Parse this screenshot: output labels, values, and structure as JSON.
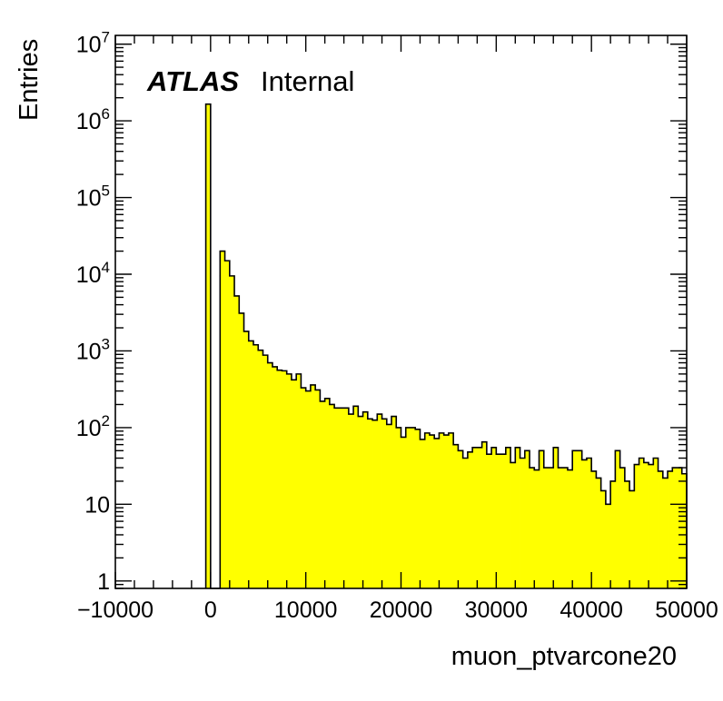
{
  "chart_data": {
    "type": "bar",
    "subtype": "histogram",
    "xlabel": "muon_ptvarcone20",
    "ylabel": "Entries",
    "annotation": {
      "brand": "ATLAS",
      "label": "Internal"
    },
    "xlim": [
      -10000,
      50000
    ],
    "ylim": [
      0.8,
      13000000
    ],
    "yscale": "log",
    "grid": false,
    "fill_color": "#ffff00",
    "line_color": "#000000",
    "x_ticks": [
      {
        "value": -10000,
        "label": "−10000"
      },
      {
        "value": 0,
        "label": "0"
      },
      {
        "value": 10000,
        "label": "10000"
      },
      {
        "value": 20000,
        "label": "20000"
      },
      {
        "value": 30000,
        "label": "30000"
      },
      {
        "value": 40000,
        "label": "40000"
      },
      {
        "value": 50000,
        "label": "50000"
      }
    ],
    "y_ticks": [
      {
        "value": 1,
        "base": "1",
        "exp": ""
      },
      {
        "value": 10,
        "base": "10",
        "exp": ""
      },
      {
        "value": 100,
        "base": "10",
        "exp": "2"
      },
      {
        "value": 1000,
        "base": "10",
        "exp": "3"
      },
      {
        "value": 10000,
        "base": "10",
        "exp": "4"
      },
      {
        "value": 100000,
        "base": "10",
        "exp": "5"
      },
      {
        "value": 1000000,
        "base": "10",
        "exp": "6"
      },
      {
        "value": 10000000,
        "base": "10",
        "exp": "7"
      }
    ],
    "bin_width": 500,
    "bins_start": -500,
    "values": [
      1650000,
      0,
      0,
      20000,
      15000,
      9500,
      5200,
      3100,
      1800,
      1350,
      1200,
      1020,
      880,
      700,
      620,
      560,
      550,
      500,
      420,
      500,
      330,
      300,
      360,
      310,
      220,
      240,
      200,
      180,
      180,
      180,
      150,
      190,
      140,
      160,
      130,
      125,
      150,
      130,
      110,
      140,
      100,
      75,
      100,
      100,
      95,
      70,
      85,
      80,
      72,
      85,
      80,
      85,
      60,
      50,
      40,
      48,
      55,
      55,
      65,
      45,
      55,
      45,
      45,
      55,
      35,
      55,
      40,
      50,
      30,
      28,
      50,
      30,
      30,
      55,
      30,
      30,
      28,
      50,
      50,
      38,
      40,
      27,
      22,
      15,
      10,
      20,
      50,
      30,
      20,
      15,
      33,
      40,
      35,
      33,
      40,
      27,
      22,
      27,
      30,
      30,
      25
    ]
  }
}
